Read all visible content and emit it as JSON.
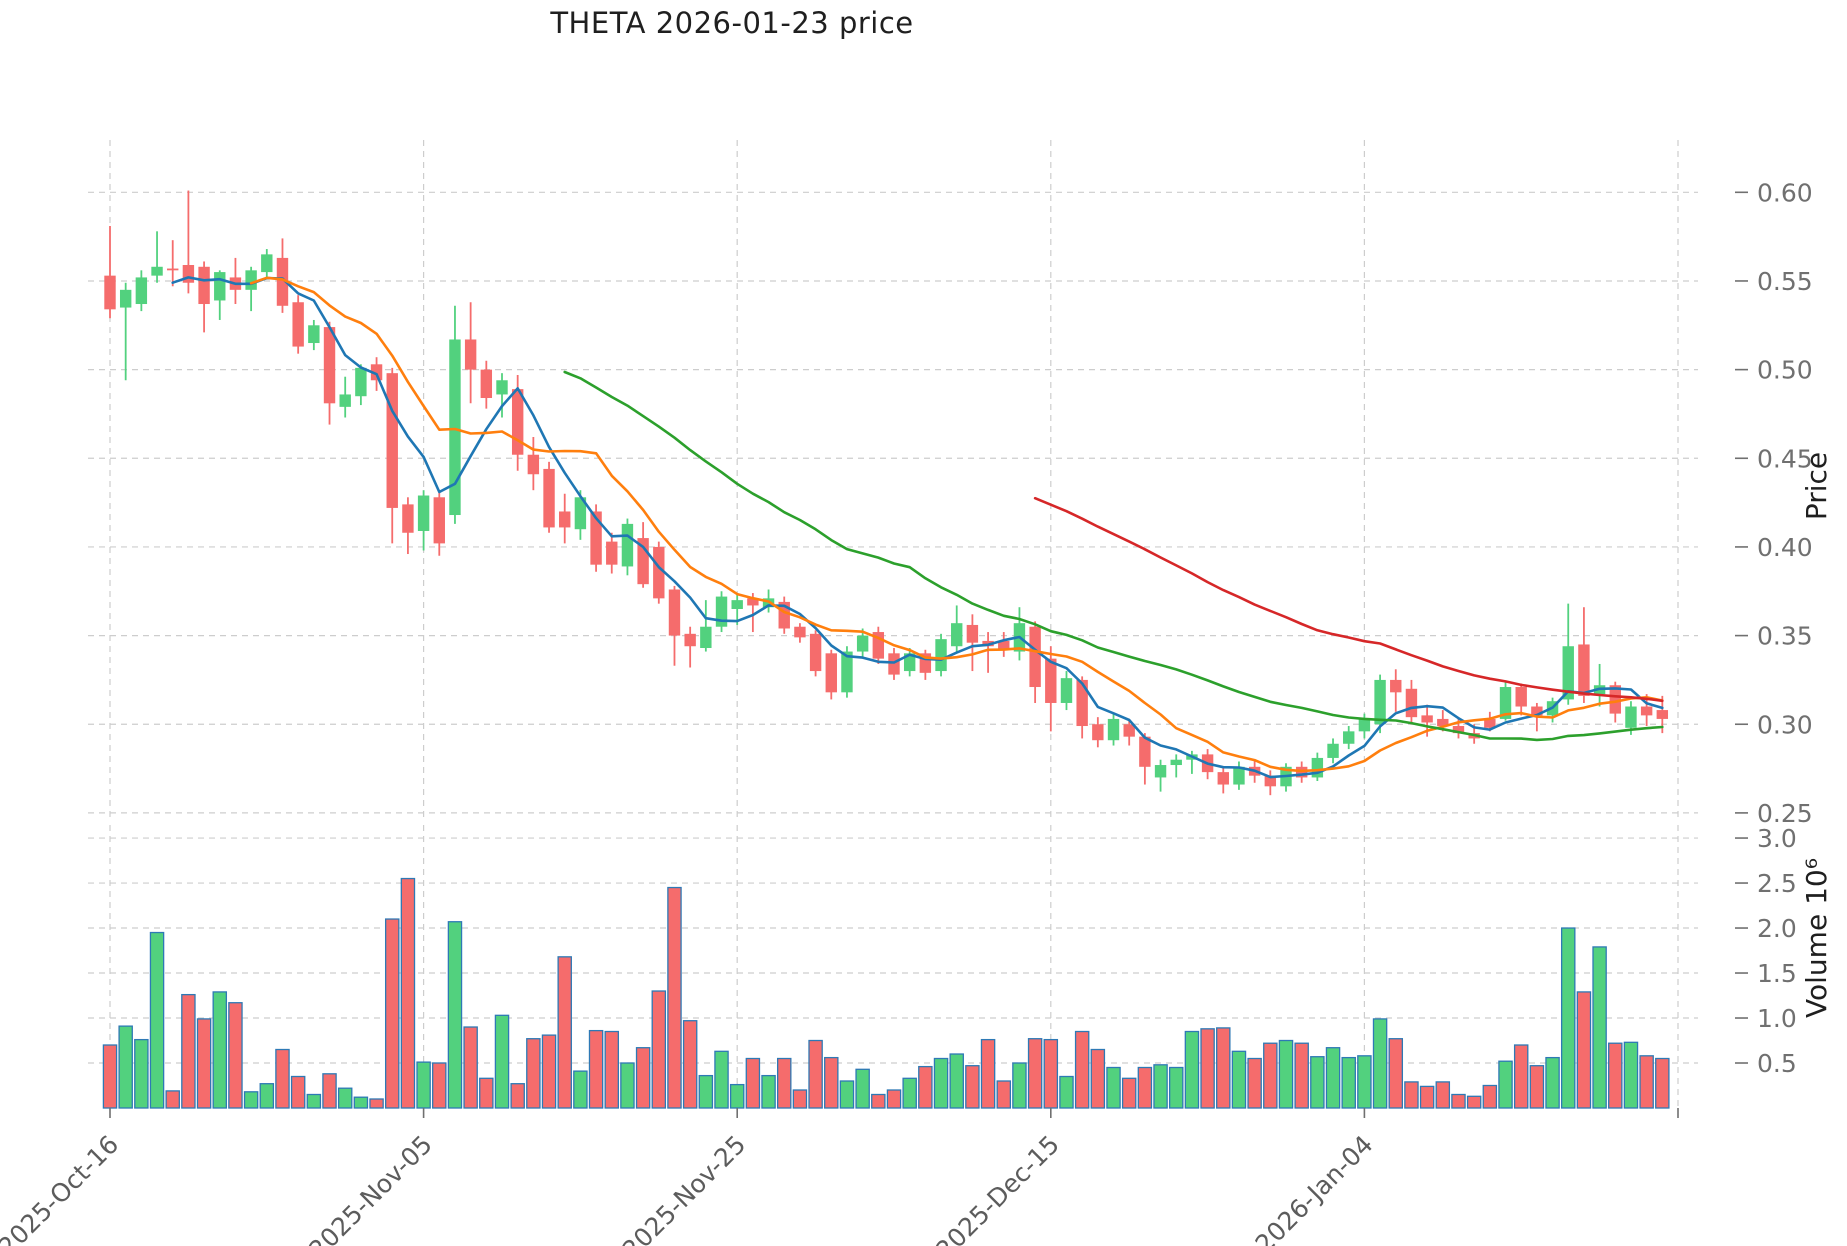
{
  "title": "THETA  2026-01-23  price",
  "chart_data": {
    "type": "candlestick",
    "title": "THETA  2026-01-23  price",
    "x_tick_indices": [
      0,
      20,
      40,
      60,
      80,
      100
    ],
    "x_tick_labels": [
      "2025-Oct-16",
      "2025-Nov-05",
      "2025-Nov-25",
      "2025-Dec-15",
      "2026-Jan-04",
      ""
    ],
    "price_axis": {
      "label": "Price",
      "ticks": [
        0.25,
        0.3,
        0.35,
        0.4,
        0.45,
        0.5,
        0.55,
        0.6
      ],
      "ylim": [
        0.246,
        0.6295
      ]
    },
    "volume_axis": {
      "label": "Volume",
      "scale": "10⁶",
      "label_full": "Volume  10⁶",
      "ticks": [
        0.5,
        1.0,
        1.5,
        2.0,
        2.5,
        3.0
      ],
      "ylim": [
        0,
        3.145
      ]
    },
    "moving_averages": [
      {
        "name": "MA5",
        "window": 5,
        "color": "#1f77b4"
      },
      {
        "name": "MA10",
        "window": 10,
        "color": "#ff7f0e"
      },
      {
        "name": "MA30",
        "window": 30,
        "color": "#2ca02c"
      },
      {
        "name": "MA60",
        "window": 60,
        "color": "#d62728"
      }
    ],
    "colors": {
      "up": "#52d17e",
      "down": "#f56c6c",
      "volume_edge": "#2e79b5",
      "grid": "#cdcdcd",
      "tick_text": "#707070",
      "date_text": "#5c5c5c"
    },
    "open": [
      0.553,
      0.535,
      0.537,
      0.553,
      0.557,
      0.559,
      0.558,
      0.539,
      0.552,
      0.545,
      0.555,
      0.563,
      0.538,
      0.515,
      0.524,
      0.479,
      0.485,
      0.503,
      0.498,
      0.424,
      0.409,
      0.428,
      0.418,
      0.517,
      0.5,
      0.486,
      0.489,
      0.452,
      0.444,
      0.42,
      0.41,
      0.42,
      0.403,
      0.389,
      0.405,
      0.4,
      0.376,
      0.351,
      0.343,
      0.355,
      0.365,
      0.371,
      0.366,
      0.369,
      0.355,
      0.351,
      0.34,
      0.318,
      0.341,
      0.352,
      0.34,
      0.33,
      0.34,
      0.33,
      0.344,
      0.356,
      0.347,
      0.347,
      0.341,
      0.355,
      0.337,
      0.312,
      0.325,
      0.3,
      0.291,
      0.3,
      0.293,
      0.27,
      0.277,
      0.28,
      0.283,
      0.273,
      0.266,
      0.276,
      0.271,
      0.265,
      0.276,
      0.27,
      0.281,
      0.289,
      0.296,
      0.3,
      0.325,
      0.32,
      0.305,
      0.303,
      0.299,
      0.295,
      0.303,
      0.303,
      0.321,
      0.31,
      0.305,
      0.314,
      0.345,
      0.317,
      0.322,
      0.298,
      0.31,
      0.308
    ],
    "high": [
      0.581,
      0.549,
      0.556,
      0.578,
      0.573,
      0.601,
      0.561,
      0.556,
      0.563,
      0.558,
      0.568,
      0.574,
      0.542,
      0.528,
      0.527,
      0.496,
      0.503,
      0.507,
      0.501,
      0.428,
      0.432,
      0.431,
      0.536,
      0.538,
      0.505,
      0.498,
      0.497,
      0.462,
      0.448,
      0.43,
      0.432,
      0.424,
      0.408,
      0.416,
      0.414,
      0.403,
      0.378,
      0.355,
      0.37,
      0.375,
      0.374,
      0.374,
      0.376,
      0.372,
      0.357,
      0.353,
      0.342,
      0.344,
      0.354,
      0.355,
      0.343,
      0.343,
      0.342,
      0.351,
      0.367,
      0.362,
      0.352,
      0.352,
      0.366,
      0.358,
      0.344,
      0.33,
      0.327,
      0.304,
      0.306,
      0.303,
      0.295,
      0.28,
      0.283,
      0.285,
      0.286,
      0.276,
      0.279,
      0.28,
      0.274,
      0.278,
      0.279,
      0.284,
      0.292,
      0.299,
      0.306,
      0.328,
      0.331,
      0.325,
      0.311,
      0.308,
      0.304,
      0.3,
      0.307,
      0.324,
      0.323,
      0.312,
      0.315,
      0.368,
      0.366,
      0.334,
      0.324,
      0.313,
      0.317,
      0.316
    ],
    "low": [
      0.529,
      0.494,
      0.533,
      0.549,
      0.547,
      0.543,
      0.521,
      0.528,
      0.537,
      0.533,
      0.551,
      0.532,
      0.509,
      0.511,
      0.469,
      0.473,
      0.48,
      0.488,
      0.402,
      0.396,
      0.398,
      0.395,
      0.413,
      0.481,
      0.478,
      0.473,
      0.443,
      0.432,
      0.408,
      0.402,
      0.404,
      0.386,
      0.385,
      0.384,
      0.377,
      0.368,
      0.333,
      0.332,
      0.341,
      0.352,
      0.356,
      0.352,
      0.363,
      0.351,
      0.346,
      0.327,
      0.314,
      0.315,
      0.338,
      0.334,
      0.325,
      0.327,
      0.325,
      0.327,
      0.341,
      0.33,
      0.329,
      0.338,
      0.336,
      0.312,
      0.296,
      0.308,
      0.292,
      0.287,
      0.288,
      0.288,
      0.266,
      0.262,
      0.27,
      0.272,
      0.269,
      0.261,
      0.263,
      0.267,
      0.26,
      0.262,
      0.267,
      0.268,
      0.278,
      0.286,
      0.292,
      0.295,
      0.307,
      0.3,
      0.293,
      0.296,
      0.292,
      0.289,
      0.296,
      0.302,
      0.305,
      0.296,
      0.301,
      0.311,
      0.312,
      0.31,
      0.301,
      0.294,
      0.299,
      0.295
    ],
    "close": [
      0.534,
      0.545,
      0.552,
      0.558,
      0.556,
      0.549,
      0.537,
      0.555,
      0.545,
      0.556,
      0.565,
      0.536,
      0.513,
      0.525,
      0.481,
      0.486,
      0.501,
      0.494,
      0.422,
      0.408,
      0.429,
      0.402,
      0.517,
      0.5,
      0.484,
      0.494,
      0.452,
      0.441,
      0.411,
      0.411,
      0.428,
      0.39,
      0.39,
      0.413,
      0.379,
      0.371,
      0.35,
      0.344,
      0.355,
      0.372,
      0.37,
      0.367,
      0.371,
      0.354,
      0.349,
      0.33,
      0.318,
      0.341,
      0.35,
      0.337,
      0.328,
      0.34,
      0.329,
      0.348,
      0.357,
      0.346,
      0.344,
      0.342,
      0.357,
      0.321,
      0.312,
      0.326,
      0.299,
      0.291,
      0.303,
      0.293,
      0.276,
      0.277,
      0.28,
      0.283,
      0.273,
      0.266,
      0.276,
      0.271,
      0.265,
      0.276,
      0.27,
      0.281,
      0.289,
      0.296,
      0.303,
      0.325,
      0.318,
      0.304,
      0.301,
      0.299,
      0.295,
      0.292,
      0.298,
      0.321,
      0.31,
      0.305,
      0.313,
      0.344,
      0.316,
      0.322,
      0.306,
      0.31,
      0.305,
      0.303
    ],
    "volume_millions": [
      0.7,
      0.91,
      0.76,
      1.95,
      0.19,
      1.26,
      0.99,
      1.29,
      1.17,
      0.18,
      0.27,
      0.65,
      0.35,
      0.15,
      0.38,
      0.22,
      0.12,
      0.1,
      2.1,
      2.55,
      0.51,
      0.5,
      2.07,
      0.9,
      0.33,
      1.03,
      0.27,
      0.77,
      0.81,
      1.68,
      0.41,
      0.86,
      0.85,
      0.5,
      0.67,
      1.3,
      2.45,
      0.97,
      0.36,
      0.63,
      0.26,
      0.55,
      0.36,
      0.55,
      0.2,
      0.75,
      0.56,
      0.3,
      0.43,
      0.15,
      0.2,
      0.33,
      0.46,
      0.55,
      0.6,
      0.47,
      0.76,
      0.3,
      0.5,
      0.77,
      0.76,
      0.35,
      0.85,
      0.65,
      0.45,
      0.33,
      0.45,
      0.48,
      0.45,
      0.85,
      0.88,
      0.89,
      0.63,
      0.55,
      0.72,
      0.75,
      0.72,
      0.57,
      0.67,
      0.56,
      0.58,
      0.99,
      0.77,
      0.29,
      0.24,
      0.29,
      0.15,
      0.13,
      0.25,
      0.52,
      0.7,
      0.47,
      0.56,
      2.0,
      1.29,
      1.79,
      0.72,
      0.73,
      0.58,
      0.55
    ]
  }
}
